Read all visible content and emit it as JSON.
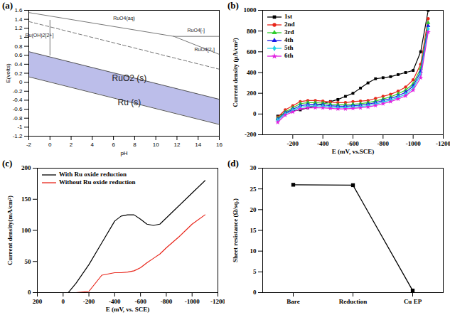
{
  "chart_data": [
    {
      "type": "line",
      "title": "(a)",
      "xlabel": "pH",
      "ylabel": "E(volts)",
      "xlim": [
        -2,
        16
      ],
      "xticks": [
        -2,
        0,
        2,
        4,
        6,
        8,
        10,
        12,
        14,
        16
      ],
      "ylim": [
        -1.2,
        1.6
      ],
      "yticks": [
        -1.2,
        -1,
        -0.8,
        -0.6,
        -0.4,
        -0.2,
        0,
        0.2,
        0.4,
        0.6,
        0.8,
        1,
        1.2,
        1.4,
        1.6
      ],
      "series": [
        {
          "type": "area",
          "color": "#8f93dc",
          "x": [
            -2,
            16
          ],
          "values": [
            0.68,
            -0.38
          ],
          "low": [
            0.12,
            -0.94
          ]
        },
        {
          "color": "#555555",
          "line_style": "solid",
          "x": [
            -2,
            16
          ],
          "values": [
            0.68,
            -0.38
          ]
        },
        {
          "color": "#555555",
          "line_style": "solid",
          "x": [
            -2,
            16
          ],
          "values": [
            0.12,
            -0.94
          ]
        },
        {
          "color": "#777777",
          "line_style": "dashed",
          "x": [
            -2,
            16
          ],
          "values": [
            1.35,
            0.29
          ]
        },
        {
          "color": "#777777",
          "line_style": "solid",
          "x": [
            -2,
            11.7
          ],
          "values": [
            1.55,
            1.02
          ]
        },
        {
          "color": "#777777",
          "line_style": "solid",
          "x": [
            11.7,
            16
          ],
          "values": [
            1.02,
            1.02
          ]
        },
        {
          "color": "#777777",
          "line_style": "solid",
          "x": [
            11.7,
            16
          ],
          "values": [
            1.02,
            0.62
          ]
        },
        {
          "color": "#777777",
          "line_style": "solid",
          "x": [
            0,
            0
          ],
          "values": [
            0.6,
            1.38
          ]
        }
      ],
      "annotations": [
        {
          "text": "RuO4(aq)",
          "x": 7,
          "y": 1.42
        },
        {
          "text": "Ru(OH)2[2+]",
          "x": -1,
          "y": 1.05
        },
        {
          "text": "RuO4[-]",
          "x": 13.8,
          "y": 1.15
        },
        {
          "text": "RuO4[2-]",
          "x": 14.6,
          "y": 0.72
        },
        {
          "text": "RuO2 (s)",
          "x": 7.5,
          "y": 0.08
        },
        {
          "text": "Ru (s)",
          "x": 7.5,
          "y": -0.45
        }
      ]
    },
    {
      "type": "line",
      "title": "(b)",
      "xlabel": "E (mV, vs.SCE)",
      "ylabel": "Current density (μA/cm²)",
      "xlim": [
        0,
        -1200
      ],
      "xticks": [
        -200,
        -400,
        -600,
        -800,
        -1000,
        -1200
      ],
      "ylim": [
        -200,
        1000
      ],
      "yticks": [
        -200,
        0,
        200,
        400,
        600,
        800,
        1000
      ],
      "legend": "top-left",
      "x": [
        -100,
        -150,
        -200,
        -250,
        -300,
        -350,
        -400,
        -450,
        -500,
        -550,
        -600,
        -650,
        -700,
        -750,
        -800,
        -850,
        -900,
        -950,
        -1000,
        -1050,
        -1100
      ],
      "series": [
        {
          "name": "1st",
          "color": "#000000",
          "marker": "square",
          "values": [
            -20,
            10,
            30,
            40,
            60,
            80,
            100,
            120,
            140,
            170,
            200,
            250,
            300,
            340,
            350,
            360,
            380,
            400,
            420,
            600,
            1000
          ]
        },
        {
          "name": "2nd",
          "color": "#e8251a",
          "marker": "circle",
          "values": [
            -30,
            40,
            80,
            120,
            130,
            130,
            125,
            115,
            110,
            110,
            120,
            125,
            130,
            150,
            170,
            190,
            220,
            260,
            330,
            480,
            920
          ]
        },
        {
          "name": "3rd",
          "color": "#2ecc2e",
          "marker": "triangle",
          "values": [
            -40,
            20,
            60,
            100,
            110,
            110,
            105,
            95,
            90,
            90,
            95,
            100,
            110,
            125,
            145,
            165,
            195,
            230,
            290,
            440,
            880
          ]
        },
        {
          "name": "4th",
          "color": "#1a1ae8",
          "marker": "triangle",
          "values": [
            -50,
            10,
            45,
            80,
            90,
            92,
            88,
            80,
            75,
            75,
            80,
            85,
            95,
            110,
            130,
            150,
            175,
            210,
            270,
            410,
            850
          ]
        },
        {
          "name": "5th",
          "color": "#22d3e6",
          "marker": "diamond",
          "values": [
            -60,
            0,
            35,
            65,
            75,
            78,
            75,
            68,
            62,
            62,
            68,
            72,
            80,
            95,
            115,
            135,
            160,
            190,
            250,
            380,
            820
          ]
        },
        {
          "name": "6th",
          "color": "#e020e0",
          "marker": "star",
          "values": [
            -80,
            -10,
            20,
            50,
            60,
            62,
            60,
            55,
            50,
            50,
            55,
            60,
            68,
            82,
            100,
            120,
            145,
            175,
            230,
            350,
            790
          ]
        }
      ]
    },
    {
      "type": "line",
      "title": "(c)",
      "xlabel": "E (mV, vs. SCE)",
      "ylabel": "Current density(mA/cm²)",
      "xlim": [
        200,
        -1200
      ],
      "xticks": [
        200,
        0,
        -200,
        -400,
        -600,
        -800,
        -1000,
        -1200
      ],
      "ylim": [
        0,
        200
      ],
      "yticks": [
        0,
        50,
        100,
        150,
        200
      ],
      "legend": "top-left",
      "x": [
        -40,
        -100,
        -200,
        -300,
        -400,
        -450,
        -500,
        -550,
        -600,
        -650,
        -700,
        -750,
        -800,
        -900,
        -1000,
        -1100
      ],
      "series": [
        {
          "name": "With Ru oxide reduction",
          "color": "#000000",
          "values": [
            0,
            15,
            45,
            80,
            115,
            123,
            125,
            125,
            118,
            110,
            108,
            110,
            120,
            140,
            160,
            180
          ]
        },
        {
          "name": "Without Ru oxide reduction",
          "color": "#e8251a",
          "values": [
            0,
            0,
            2,
            28,
            32,
            32,
            33,
            35,
            40,
            48,
            55,
            62,
            72,
            90,
            110,
            125
          ]
        }
      ]
    },
    {
      "type": "line",
      "title": "(d)",
      "ylabel": "Sheet resistance (Ω/sq.)",
      "categories": [
        "Bare",
        "Reduction",
        "Cu EP"
      ],
      "values": [
        26,
        25.9,
        0.5
      ],
      "color": "#000000",
      "marker": "square",
      "ylim": [
        0,
        30
      ],
      "yticks": [
        0,
        5,
        10,
        15,
        20,
        25,
        30
      ]
    }
  ]
}
